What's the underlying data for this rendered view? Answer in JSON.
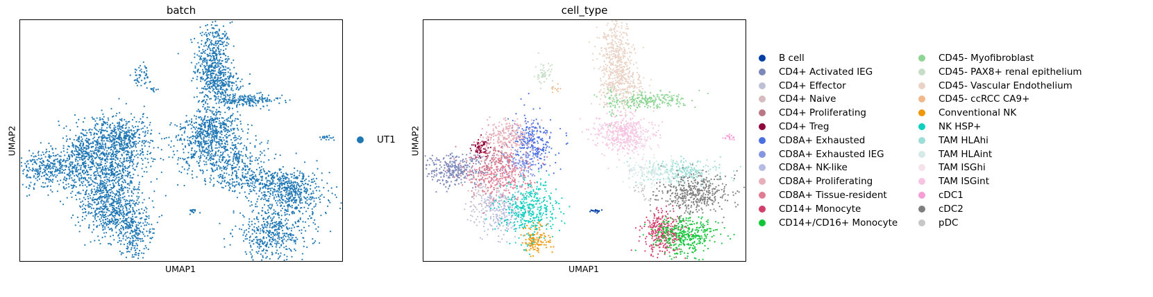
{
  "chart_data": [
    {
      "type": "scatter",
      "title": "batch",
      "xlabel": "UMAP1",
      "ylabel": "UMAP2",
      "grid": false,
      "legend": {
        "placement": "right",
        "entries": [
          {
            "name": "UT1",
            "color": "#1f77b4"
          }
        ]
      },
      "series": [
        {
          "name": "UT1",
          "color": "#1f77b4",
          "clusters": [
            {
              "x": 7.6,
              "y": 2.3,
              "sx": 0.5,
              "sy": 1.3,
              "n": 500
            },
            {
              "x": 8.2,
              "y": 1.1,
              "sx": 0.5,
              "sy": 0.4,
              "n": 150
            },
            {
              "x": 9.3,
              "y": 0.0,
              "sx": 1.1,
              "sy": 0.2,
              "n": 200
            },
            {
              "x": 7.0,
              "y": -2.2,
              "sx": 0.8,
              "sy": 0.6,
              "n": 250
            },
            {
              "x": 8.2,
              "y": -3.6,
              "sx": 1.3,
              "sy": 0.7,
              "n": 420
            },
            {
              "x": 7.8,
              "y": -1.5,
              "sx": 0.7,
              "sy": 0.6,
              "n": 250
            },
            {
              "x": 10.4,
              "y": -5.0,
              "sx": 1.2,
              "sy": 0.4,
              "n": 260
            },
            {
              "x": 12.1,
              "y": -5.8,
              "sx": 1.1,
              "sy": 0.7,
              "n": 440
            },
            {
              "x": 11.0,
              "y": -8.3,
              "sx": 1.1,
              "sy": 0.8,
              "n": 440
            },
            {
              "x": 1.4,
              "y": -2.3,
              "sx": 0.9,
              "sy": 0.6,
              "n": 300
            },
            {
              "x": 2.8,
              "y": -2.6,
              "sx": 0.7,
              "sy": 0.9,
              "n": 300
            },
            {
              "x": -1.7,
              "y": -4.3,
              "sx": 1.0,
              "sy": 0.6,
              "n": 380
            },
            {
              "x": 0.6,
              "y": -4.0,
              "sx": 0.9,
              "sy": 0.8,
              "n": 300
            },
            {
              "x": 2.0,
              "y": -4.6,
              "sx": 0.7,
              "sy": 0.9,
              "n": 300
            },
            {
              "x": 1.3,
              "y": -6.3,
              "sx": 0.8,
              "sy": 0.8,
              "n": 320
            },
            {
              "x": 2.4,
              "y": -7.4,
              "sx": 0.9,
              "sy": 0.8,
              "n": 350
            },
            {
              "x": 3.0,
              "y": -8.7,
              "sx": 0.4,
              "sy": 0.6,
              "n": 120
            },
            {
              "x": 0.0,
              "y": -3.0,
              "sx": 0.4,
              "sy": 0.4,
              "n": 90
            },
            {
              "x": 3.4,
              "y": 1.6,
              "sx": 0.25,
              "sy": 0.35,
              "n": 50
            },
            {
              "x": 4.1,
              "y": 0.7,
              "sx": 0.15,
              "sy": 0.1,
              "n": 10
            },
            {
              "x": 6.4,
              "y": -6.9,
              "sx": 0.2,
              "sy": 0.06,
              "n": 20
            },
            {
              "x": 14.1,
              "y": -2.3,
              "sx": 0.25,
              "sy": 0.1,
              "n": 20
            }
          ]
        }
      ]
    },
    {
      "type": "scatter",
      "title": "cell_type",
      "xlabel": "UMAP1",
      "ylabel": "UMAP2",
      "grid": false,
      "legend": {
        "placement": "right",
        "columns": 2
      },
      "series": [
        {
          "name": "B cell",
          "color": "#023fa5",
          "clusters": [
            {
              "x": 6.4,
              "y": -6.9,
              "sx": 0.2,
              "sy": 0.06,
              "n": 20
            }
          ]
        },
        {
          "name": "CD4+ Activated IEG",
          "color": "#7d87b9",
          "clusters": [
            {
              "x": -1.7,
              "y": -4.3,
              "sx": 1.0,
              "sy": 0.5,
              "n": 320
            }
          ]
        },
        {
          "name": "CD4+ Effector",
          "color": "#bec1d4",
          "clusters": [
            {
              "x": 0.4,
              "y": -6.8,
              "sx": 0.7,
              "sy": 0.9,
              "n": 120
            }
          ]
        },
        {
          "name": "CD4+ Naive",
          "color": "#d6bcc0",
          "clusters": [
            {
              "x": 0.3,
              "y": -5.8,
              "sx": 0.6,
              "sy": 0.7,
              "n": 70
            }
          ]
        },
        {
          "name": "CD4+ Proliferating",
          "color": "#bb7784",
          "clusters": [
            {
              "x": 1.0,
              "y": -3.5,
              "sx": 0.4,
              "sy": 0.3,
              "n": 40
            }
          ]
        },
        {
          "name": "CD4+ Treg",
          "color": "#8e063b",
          "clusters": [
            {
              "x": -0.2,
              "y": -3.0,
              "sx": 0.3,
              "sy": 0.3,
              "n": 70
            }
          ]
        },
        {
          "name": "CD8A+ Exhausted",
          "color": "#4a6fe3",
          "clusters": [
            {
              "x": 2.8,
              "y": -2.6,
              "sx": 0.6,
              "sy": 0.8,
              "n": 250
            }
          ]
        },
        {
          "name": "CD8A+ Exhausted IEG",
          "color": "#8595e1",
          "clusters": [
            {
              "x": 2.2,
              "y": -3.9,
              "sx": 0.5,
              "sy": 0.5,
              "n": 120
            }
          ]
        },
        {
          "name": "CD8A+ NK-like",
          "color": "#b5bbe3",
          "clusters": [
            {
              "x": 1.0,
              "y": -7.0,
              "sx": 0.6,
              "sy": 0.7,
              "n": 160
            }
          ]
        },
        {
          "name": "CD8A+ Proliferating",
          "color": "#e6afb9",
          "clusters": [
            {
              "x": 1.3,
              "y": -2.2,
              "sx": 0.7,
              "sy": 0.5,
              "n": 220
            }
          ]
        },
        {
          "name": "CD8A+ Tissue-resident",
          "color": "#e07b91",
          "clusters": [
            {
              "x": 0.8,
              "y": -4.4,
              "sx": 0.9,
              "sy": 0.8,
              "n": 380
            }
          ]
        },
        {
          "name": "CD14+ Monocyte",
          "color": "#d33f6a",
          "clusters": [
            {
              "x": 10.3,
              "y": -8.2,
              "sx": 0.6,
              "sy": 0.7,
              "n": 300
            }
          ]
        },
        {
          "name": "CD14+/CD16+ Monocyte",
          "color": "#11c638",
          "clusters": [
            {
              "x": 11.6,
              "y": -8.4,
              "sx": 0.9,
              "sy": 0.6,
              "n": 360
            }
          ]
        },
        {
          "name": "CD45- Myofibroblast",
          "color": "#8dd593",
          "clusters": [
            {
              "x": 9.3,
              "y": 0.0,
              "sx": 1.1,
              "sy": 0.25,
              "n": 220
            },
            {
              "x": 7.3,
              "y": -0.3,
              "sx": 0.2,
              "sy": 0.6,
              "n": 40
            }
          ]
        },
        {
          "name": "CD45- PAX8+ renal epithelium",
          "color": "#c6dec7",
          "clusters": [
            {
              "x": 3.4,
              "y": 1.6,
              "sx": 0.25,
              "sy": 0.35,
              "n": 50
            }
          ]
        },
        {
          "name": "CD45- Vascular Endothelium",
          "color": "#ead3c6",
          "clusters": [
            {
              "x": 7.6,
              "y": 2.3,
              "sx": 0.5,
              "sy": 1.3,
              "n": 500
            },
            {
              "x": 8.2,
              "y": 1.1,
              "sx": 0.5,
              "sy": 0.4,
              "n": 120
            }
          ]
        },
        {
          "name": "CD45- ccRCC CA9+",
          "color": "#f0b98d",
          "clusters": [
            {
              "x": 4.1,
              "y": 0.7,
              "sx": 0.15,
              "sy": 0.1,
              "n": 10
            }
          ]
        },
        {
          "name": "Conventional NK",
          "color": "#ef9708",
          "clusters": [
            {
              "x": 3.0,
              "y": -8.7,
              "sx": 0.4,
              "sy": 0.5,
              "n": 130
            }
          ]
        },
        {
          "name": "NK HSP+",
          "color": "#0fcfc0",
          "clusters": [
            {
              "x": 2.6,
              "y": -6.8,
              "sx": 0.8,
              "sy": 0.9,
              "n": 380
            }
          ]
        },
        {
          "name": "TAM HLAhi",
          "color": "#9cded6",
          "clusters": [
            {
              "x": 11.5,
              "y": -4.4,
              "sx": 1.1,
              "sy": 0.4,
              "n": 220
            }
          ]
        },
        {
          "name": "TAM HLAint",
          "color": "#d5eae7",
          "clusters": [
            {
              "x": 9.6,
              "y": -4.5,
              "sx": 0.8,
              "sy": 0.4,
              "n": 140
            }
          ]
        },
        {
          "name": "TAM ISGhi",
          "color": "#f3e1eb",
          "clusters": [
            {
              "x": 8.6,
              "y": -2.6,
              "sx": 0.6,
              "sy": 0.4,
              "n": 100
            }
          ]
        },
        {
          "name": "TAM ISGint",
          "color": "#f6c4e1",
          "clusters": [
            {
              "x": 8.0,
              "y": -2.0,
              "sx": 0.8,
              "sy": 0.6,
              "n": 380
            }
          ]
        },
        {
          "name": "cDC1",
          "color": "#f79cd4",
          "clusters": [
            {
              "x": 14.1,
              "y": -2.3,
              "sx": 0.25,
              "sy": 0.1,
              "n": 20
            }
          ]
        },
        {
          "name": "cDC2",
          "color": "#7f7f7f",
          "clusters": [
            {
              "x": 12.1,
              "y": -5.8,
              "sx": 1.0,
              "sy": 0.6,
              "n": 420
            }
          ]
        },
        {
          "name": "pDC",
          "color": "#c7c7c7",
          "clusters": [
            {
              "x": 9.0,
              "y": -5.6,
              "sx": 0.3,
              "sy": 0.3,
              "n": 20
            }
          ]
        }
      ]
    }
  ]
}
